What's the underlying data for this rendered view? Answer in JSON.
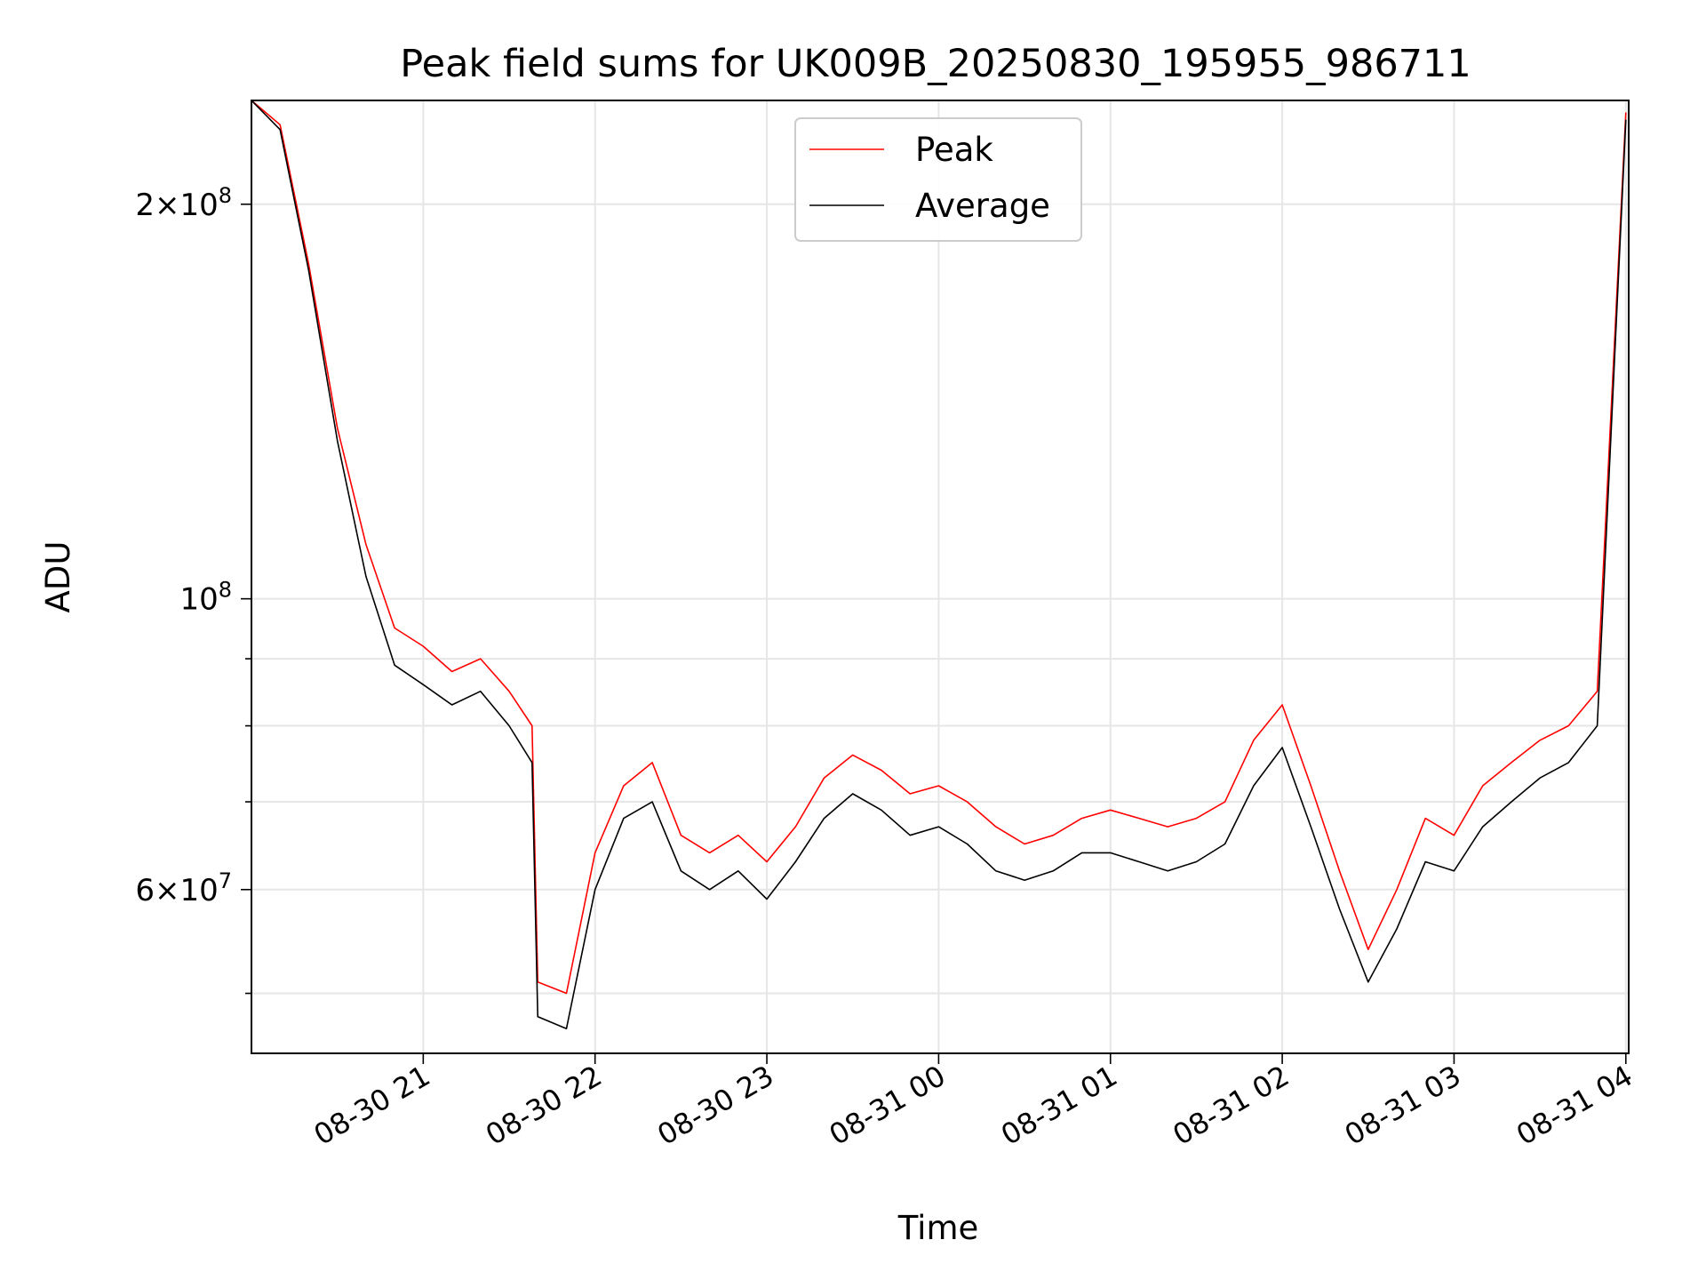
{
  "chart_data": {
    "type": "line",
    "title": "Peak field sums for UK009B_20250830_195955_986711",
    "xlabel": "Time",
    "ylabel": "ADU",
    "yscale": "log",
    "ylim": [
      45000000,
      240000000
    ],
    "xlim": [
      "2025-08-30 20:00",
      "2025-08-31 04:01"
    ],
    "grid": true,
    "legend": "upper center",
    "x_ticks": [
      {
        "x": "2025-08-30 21:00",
        "label": "08-30 21"
      },
      {
        "x": "2025-08-30 22:00",
        "label": "08-30 22"
      },
      {
        "x": "2025-08-30 23:00",
        "label": "08-30 23"
      },
      {
        "x": "2025-08-31 00:00",
        "label": "08-31 00"
      },
      {
        "x": "2025-08-31 01:00",
        "label": "08-31 01"
      },
      {
        "x": "2025-08-31 02:00",
        "label": "08-31 02"
      },
      {
        "x": "2025-08-31 03:00",
        "label": "08-31 03"
      },
      {
        "x": "2025-08-31 04:00",
        "label": "08-31 04"
      }
    ],
    "y_ticks": [
      {
        "y": 200000000,
        "base": "2",
        "exp": "8"
      },
      {
        "y": 100000000,
        "base": "",
        "exp": "8"
      },
      {
        "y": 60000000,
        "base": "6",
        "exp": "7"
      }
    ],
    "x": [
      "2025-08-30 20:00",
      "2025-08-30 20:10",
      "2025-08-30 20:20",
      "2025-08-30 20:30",
      "2025-08-30 20:40",
      "2025-08-30 20:50",
      "2025-08-30 21:00",
      "2025-08-30 21:10",
      "2025-08-30 21:20",
      "2025-08-30 21:30",
      "2025-08-30 21:38",
      "2025-08-30 21:40",
      "2025-08-30 21:50",
      "2025-08-30 22:00",
      "2025-08-30 22:10",
      "2025-08-30 22:20",
      "2025-08-30 22:30",
      "2025-08-30 22:40",
      "2025-08-30 22:50",
      "2025-08-30 23:00",
      "2025-08-30 23:10",
      "2025-08-30 23:20",
      "2025-08-30 23:30",
      "2025-08-30 23:40",
      "2025-08-30 23:50",
      "2025-08-31 00:00",
      "2025-08-31 00:10",
      "2025-08-31 00:20",
      "2025-08-31 00:30",
      "2025-08-31 00:40",
      "2025-08-31 00:50",
      "2025-08-31 01:00",
      "2025-08-31 01:10",
      "2025-08-31 01:20",
      "2025-08-31 01:30",
      "2025-08-31 01:40",
      "2025-08-31 01:50",
      "2025-08-31 02:00",
      "2025-08-31 02:10",
      "2025-08-31 02:20",
      "2025-08-31 02:30",
      "2025-08-31 02:40",
      "2025-08-31 02:50",
      "2025-08-31 03:00",
      "2025-08-31 03:10",
      "2025-08-31 03:20",
      "2025-08-31 03:30",
      "2025-08-31 03:40",
      "2025-08-31 03:50",
      "2025-08-31 04:00"
    ],
    "series": [
      {
        "name": "Peak",
        "color": "#ff0000",
        "values": [
          240000000,
          230000000,
          180000000,
          135000000,
          110000000,
          95000000,
          92000000,
          88000000,
          90000000,
          85000000,
          80000000,
          51000000,
          50000000,
          64000000,
          72000000,
          75000000,
          66000000,
          64000000,
          66000000,
          63000000,
          67000000,
          73000000,
          76000000,
          74000000,
          71000000,
          72000000,
          70000000,
          67000000,
          65000000,
          66000000,
          68000000,
          69000000,
          68000000,
          67000000,
          68000000,
          70000000,
          78000000,
          83000000,
          72000000,
          62000000,
          54000000,
          60000000,
          68000000,
          66000000,
          72000000,
          75000000,
          78000000,
          80000000,
          85000000,
          235000000
        ]
      },
      {
        "name": "Average",
        "color": "#000000",
        "values": [
          240000000,
          228000000,
          178000000,
          132000000,
          104000000,
          89000000,
          86000000,
          83000000,
          85000000,
          80000000,
          75000000,
          48000000,
          47000000,
          60000000,
          68000000,
          70000000,
          62000000,
          60000000,
          62000000,
          59000000,
          63000000,
          68000000,
          71000000,
          69000000,
          66000000,
          67000000,
          65000000,
          62000000,
          61000000,
          62000000,
          64000000,
          64000000,
          63000000,
          62000000,
          63000000,
          65000000,
          72000000,
          77000000,
          67000000,
          58000000,
          51000000,
          56000000,
          63000000,
          62000000,
          67000000,
          70000000,
          73000000,
          75000000,
          80000000,
          232000000
        ]
      }
    ]
  }
}
